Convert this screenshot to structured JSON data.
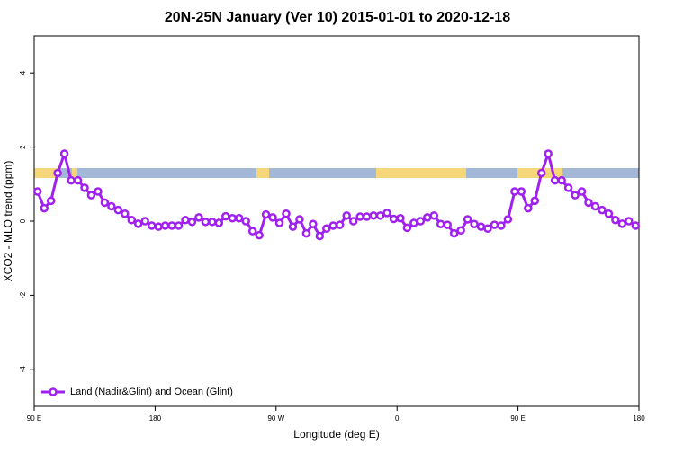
{
  "chart_data": {
    "type": "line",
    "title": "20N-25N January (Ver 10)   2015-01-01 to 2020-12-18",
    "xlabel": "Longitude (deg E)",
    "ylabel": "XCO2 - MLO trend (ppm)",
    "xlim": [
      90,
      540
    ],
    "ylim": [
      -5,
      5
    ],
    "xticks": [
      {
        "value": 90,
        "label": "90 E"
      },
      180,
      {
        "value": 270,
        "label": "90 W"
      },
      {
        "value": 360,
        "label": "0"
      },
      {
        "value": 450,
        "label": "90 E"
      },
      {
        "value": 540,
        "label": "180"
      }
    ],
    "yticks": [
      -4,
      -2,
      0,
      2,
      4
    ],
    "legend_position": "bottom-left",
    "x": [
      92.5,
      97.5,
      102.5,
      107.5,
      112.5,
      117.5,
      122.5,
      127.5,
      132.5,
      137.5,
      142.5,
      147.5,
      152.5,
      157.5,
      162.5,
      167.5,
      172.5,
      177.5,
      182.5,
      187.5,
      192.5,
      197.5,
      202.5,
      207.5,
      212.5,
      217.5,
      222.5,
      227.5,
      232.5,
      237.5,
      242.5,
      247.5,
      252.5,
      257.5,
      262.5,
      267.5,
      272.5,
      277.5,
      282.5,
      287.5,
      292.5,
      297.5,
      302.5,
      307.5,
      312.5,
      317.5,
      322.5,
      327.5,
      332.5,
      337.5,
      342.5,
      347.5,
      352.5,
      357.5,
      362.5,
      367.5,
      372.5,
      377.5,
      382.5,
      387.5,
      392.5,
      397.5,
      402.5,
      407.5,
      412.5,
      417.5,
      422.5,
      427.5,
      432.5,
      437.5,
      442.5,
      447.5,
      452.5,
      457.5,
      462.5,
      467.5,
      472.5,
      477.5,
      482.5,
      487.5,
      492.5,
      497.5,
      502.5,
      507.5,
      512.5,
      517.5,
      522.5,
      527.5,
      532.5,
      537.5
    ],
    "series": [
      {
        "name": "Land (Nadir&Glint) and Ocean (Glint)",
        "color": "#a020f0",
        "values": [
          0.8,
          0.35,
          0.55,
          1.3,
          1.82,
          1.1,
          1.1,
          0.9,
          0.7,
          0.8,
          0.5,
          0.4,
          0.3,
          0.2,
          0.03,
          -0.07,
          0.0,
          -0.12,
          -0.15,
          -0.12,
          -0.12,
          -0.12,
          0.03,
          -0.02,
          0.1,
          -0.02,
          -0.02,
          -0.05,
          0.13,
          0.08,
          0.08,
          0.0,
          -0.27,
          -0.38,
          0.18,
          0.1,
          -0.05,
          0.2,
          -0.15,
          0.05,
          -0.33,
          -0.08,
          -0.4,
          -0.2,
          -0.12,
          -0.1,
          0.15,
          0.0,
          0.12,
          0.12,
          0.15,
          0.15,
          0.22,
          0.06,
          0.08,
          -0.18,
          -0.05,
          0.0,
          0.1,
          0.15,
          -0.08,
          -0.1,
          -0.33,
          -0.25,
          0.05,
          -0.08,
          -0.15,
          -0.2,
          -0.1,
          -0.12,
          0.05,
          0.8,
          0.8,
          0.35,
          0.55,
          1.3,
          1.82,
          1.1,
          1.1,
          0.9,
          0.7,
          0.8,
          0.5,
          0.4,
          0.3,
          0.2,
          0.03,
          -0.07,
          0.0,
          -0.12
        ]
      }
    ]
  }
}
